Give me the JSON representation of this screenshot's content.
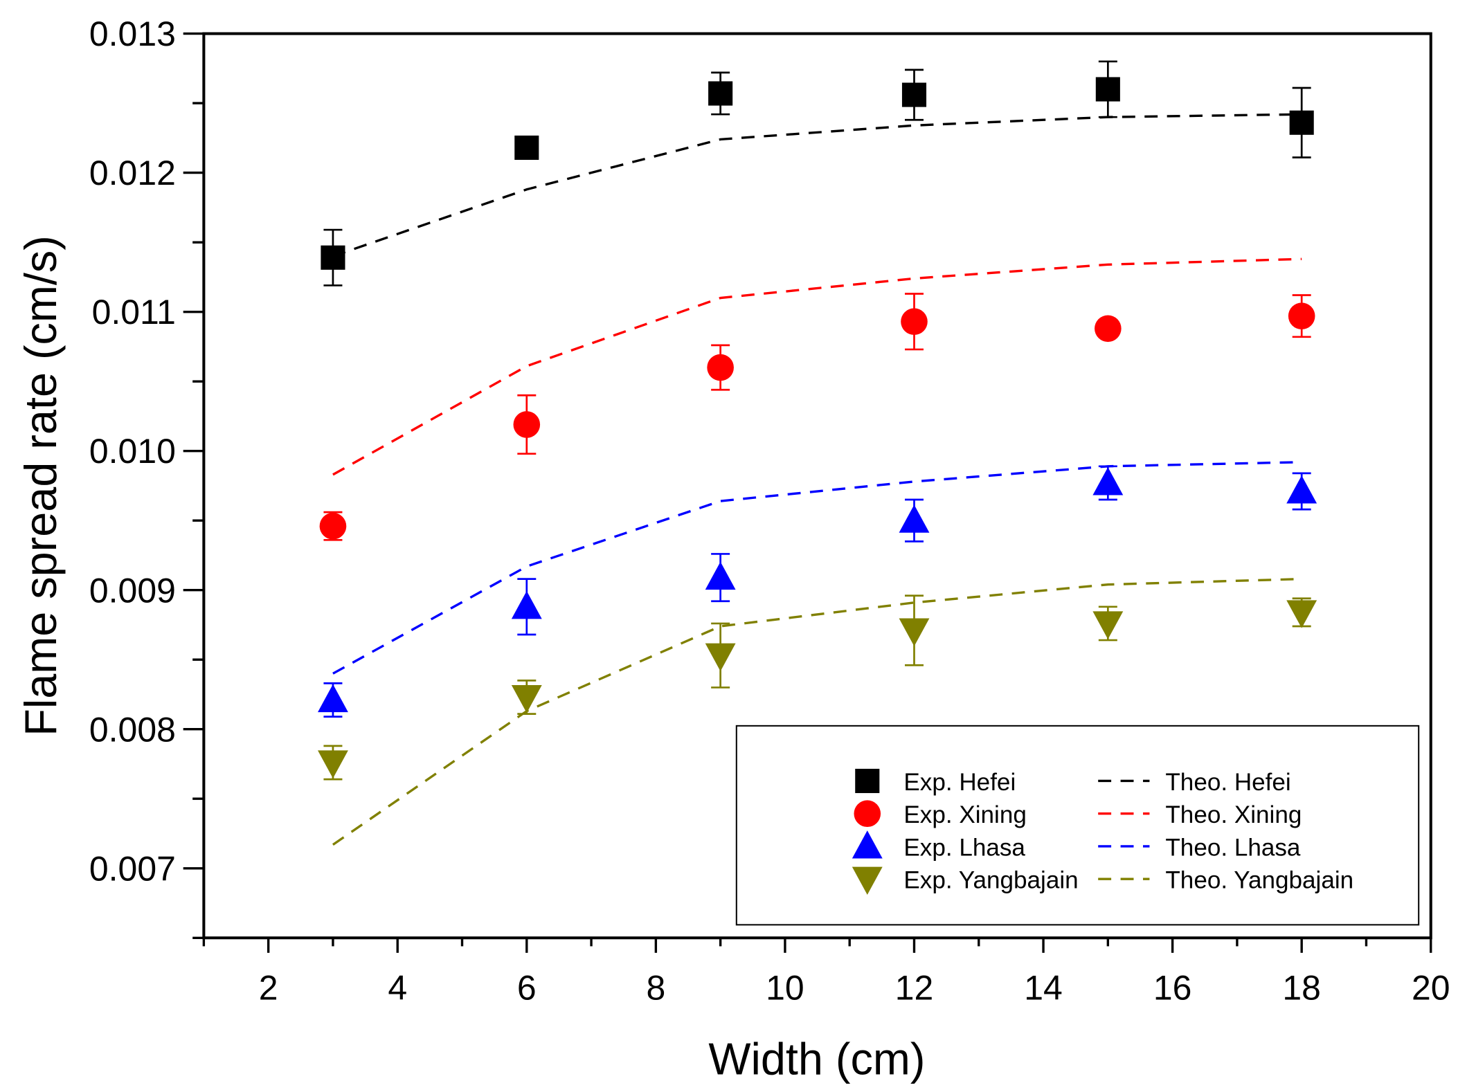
{
  "chart_data": {
    "type": "scatter",
    "title": "",
    "xlabel": "Width (cm)",
    "ylabel": "Flame spread rate (cm/s)",
    "xlim": [
      1,
      20
    ],
    "ylim": [
      0.0065,
      0.013
    ],
    "xticks": [
      "2",
      "4",
      "6",
      "8",
      "10",
      "12",
      "14",
      "16",
      "18",
      "20"
    ],
    "yticks": [
      "0.007",
      "0.008",
      "0.009",
      "0.010",
      "0.011",
      "0.012",
      "0.013"
    ],
    "grid": false,
    "legend_position": "bottom-right",
    "x": [
      3,
      6,
      9,
      12,
      15,
      18
    ],
    "series": [
      {
        "name": "Exp. Hefei",
        "kind": "scatter",
        "marker": "square",
        "color": "#000000",
        "values": [
          0.01139,
          0.01218,
          0.01257,
          0.01256,
          0.0126,
          0.01236
        ],
        "errors": [
          0.0002,
          3e-05,
          0.00015,
          0.00018,
          0.0002,
          0.00025
        ]
      },
      {
        "name": "Exp. Xining",
        "kind": "scatter",
        "marker": "circle",
        "color": "#ff0000",
        "values": [
          0.00946,
          0.01019,
          0.0106,
          0.01093,
          0.01088,
          0.01097
        ],
        "errors": [
          0.0001,
          0.00021,
          0.00016,
          0.0002,
          2e-05,
          0.00015
        ]
      },
      {
        "name": "Exp. Lhasa",
        "kind": "scatter",
        "marker": "triangle-up",
        "color": "#0000ff",
        "values": [
          0.00821,
          0.00888,
          0.00909,
          0.0095,
          0.00977,
          0.00971
        ],
        "errors": [
          0.00012,
          0.0002,
          0.00017,
          0.00015,
          0.00012,
          0.00013
        ]
      },
      {
        "name": "Exp. Yangbajain",
        "kind": "scatter",
        "marker": "triangle-down",
        "color": "#808000",
        "values": [
          0.00776,
          0.00823,
          0.00853,
          0.00871,
          0.00876,
          0.00884
        ],
        "errors": [
          0.00012,
          0.00012,
          0.00023,
          0.00025,
          0.00012,
          0.0001
        ]
      },
      {
        "name": "Theo. Hefei",
        "kind": "line",
        "dash": true,
        "color": "#000000",
        "values": [
          0.0114,
          0.01188,
          0.01224,
          0.01234,
          0.0124,
          0.01242
        ]
      },
      {
        "name": "Theo. Xining",
        "kind": "line",
        "dash": true,
        "color": "#ff0000",
        "values": [
          0.00983,
          0.01061,
          0.0111,
          0.01124,
          0.01134,
          0.01138
        ]
      },
      {
        "name": "Theo. Lhasa",
        "kind": "line",
        "dash": true,
        "color": "#0000ff",
        "values": [
          0.0084,
          0.00917,
          0.00964,
          0.00978,
          0.00989,
          0.00992
        ]
      },
      {
        "name": "Theo. Yangbajain",
        "kind": "line",
        "dash": true,
        "color": "#808000",
        "values": [
          0.00717,
          0.00813,
          0.00874,
          0.00891,
          0.00904,
          0.00908
        ]
      }
    ]
  }
}
